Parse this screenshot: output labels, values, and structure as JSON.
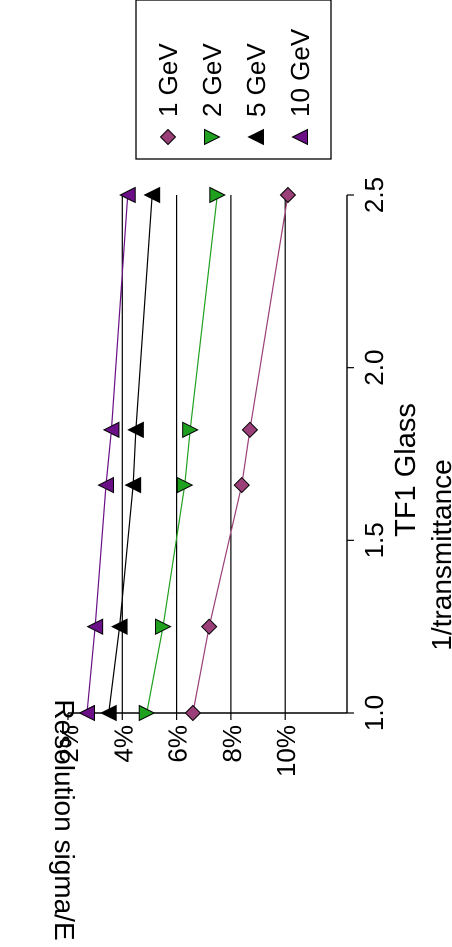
{
  "chart_data": {
    "type": "line",
    "title": "TF1 Glass",
    "xlabel": "1/transmittance",
    "ylabel": "Resolution sigma/E",
    "xlim": [
      1.0,
      2.5
    ],
    "ylim": [
      0.02,
      0.1
    ],
    "x_ticks": [
      "1.0",
      "1.5",
      "2.0",
      "2.5"
    ],
    "y_ticks": [
      "2%",
      "4%",
      "6%",
      "8%",
      "10%"
    ],
    "grid": "horizontal",
    "legend_position": "top-right",
    "x": [
      1.0,
      1.25,
      1.66,
      1.82,
      2.5
    ],
    "series": [
      {
        "name": "1 GeV",
        "marker": "diamond",
        "color": "#9a3f78",
        "values": [
          0.066,
          0.072,
          0.084,
          0.087,
          0.101
        ]
      },
      {
        "name": "2 GeV",
        "marker": "triangle-down",
        "color": "#1fa11f",
        "values": [
          0.049,
          0.055,
          0.063,
          0.065,
          0.075
        ]
      },
      {
        "name": "5 GeV",
        "marker": "triangle-left",
        "color": "#000000",
        "values": [
          0.035,
          0.039,
          0.044,
          0.045,
          0.051
        ]
      },
      {
        "name": "10 GeV",
        "marker": "triangle-up",
        "color": "#6a0f86",
        "values": [
          0.027,
          0.03,
          0.034,
          0.036,
          0.042
        ]
      }
    ]
  }
}
